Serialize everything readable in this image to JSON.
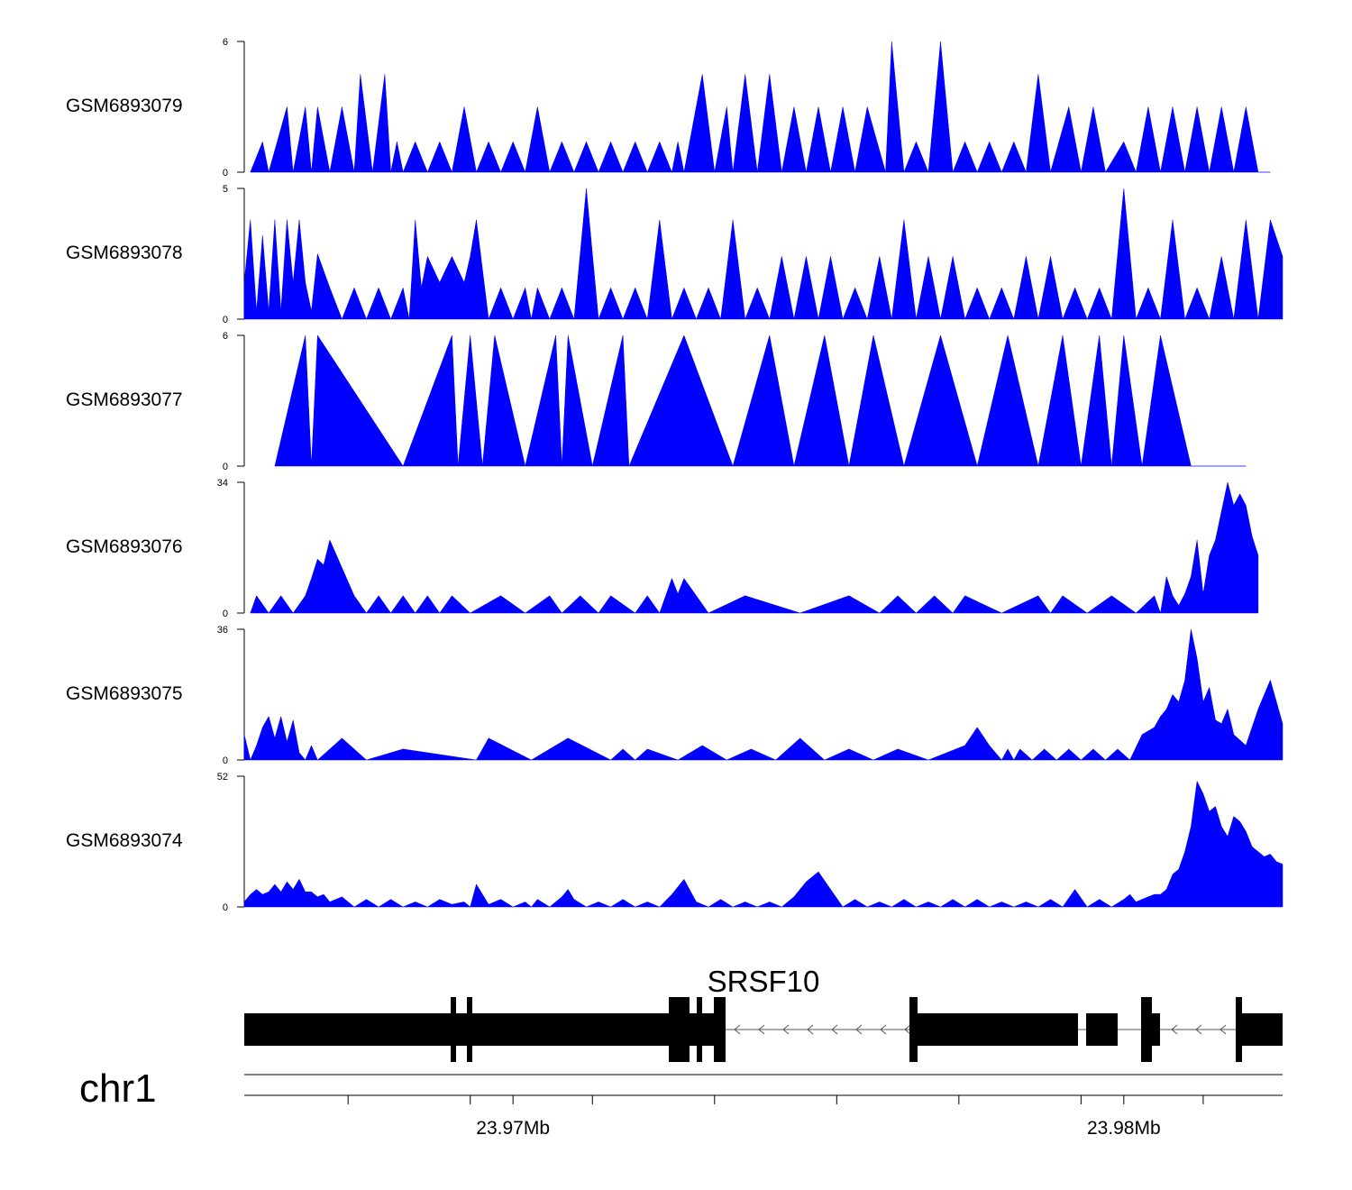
{
  "chart_data": {
    "type": "area",
    "title": "",
    "chromosome": "chr1",
    "x_unit": "Mb",
    "xlim": [
      23.9656,
      23.9826
    ],
    "x_ticks": [
      23.9673,
      23.9693,
      23.9713,
      23.9733,
      23.9753,
      23.9773,
      23.9793,
      23.9813
    ],
    "x_tick_labels": [
      {
        "value": 23.97,
        "label": "23.97Mb"
      },
      {
        "value": 23.98,
        "label": "23.98Mb"
      }
    ],
    "series_color": "#0000ff",
    "tracks": [
      {
        "name": "GSM6893079",
        "ylim": [
          0,
          6
        ],
        "ymax_label": "6",
        "ymin_label": "0",
        "x": [
          23.9657,
          23.9659,
          23.966,
          23.9663,
          23.9664,
          23.9666,
          23.9667,
          23.9668,
          23.967,
          23.9672,
          23.9674,
          23.9675,
          23.9677,
          23.9679,
          23.968,
          23.9681,
          23.9682,
          23.9684,
          23.9686,
          23.9688,
          23.969,
          23.9692,
          23.9694,
          23.9696,
          23.9698,
          23.97,
          23.9702,
          23.9704,
          23.9706,
          23.9708,
          23.971,
          23.9712,
          23.9714,
          23.9716,
          23.9718,
          23.972,
          23.9722,
          23.9724,
          23.9726,
          23.9727,
          23.9728,
          23.9731,
          23.9733,
          23.9735,
          23.9736,
          23.9738,
          23.974,
          23.9742,
          23.9744,
          23.9746,
          23.9748,
          23.975,
          23.9752,
          23.9754,
          23.9756,
          23.9758,
          23.9761,
          23.9762,
          23.9764,
          23.9766,
          23.9768,
          23.977,
          23.9772,
          23.9774,
          23.9776,
          23.9778,
          23.978,
          23.9782,
          23.9784,
          23.9786,
          23.9788,
          23.9791,
          23.9793,
          23.9795,
          23.9797,
          23.98,
          23.9802,
          23.9804,
          23.9806,
          23.9808,
          23.981,
          23.9812,
          23.9814,
          23.9816,
          23.9818,
          23.982,
          23.9822,
          23.9824
        ],
        "y": [
          0,
          1.4,
          0,
          3,
          0,
          3,
          0,
          3,
          0,
          3,
          0,
          4.5,
          0,
          4.5,
          0,
          1.4,
          0,
          1.4,
          0,
          1.4,
          0,
          3,
          0,
          1.4,
          0,
          1.4,
          0,
          3,
          0,
          1.4,
          0,
          1.4,
          0,
          1.4,
          0,
          1.4,
          0,
          1.4,
          0,
          1.4,
          0,
          4.5,
          0,
          3,
          0,
          4.5,
          0,
          4.5,
          0,
          3,
          0,
          3,
          0,
          3,
          0,
          3,
          0,
          6,
          0,
          1.4,
          0,
          6,
          0,
          1.4,
          0,
          1.4,
          0,
          1.4,
          0,
          4.5,
          0,
          3,
          0,
          3,
          0,
          1.4,
          0,
          3,
          0,
          3,
          0,
          3,
          0,
          3,
          0,
          3,
          0,
          0
        ],
        "baseline_only": false
      },
      {
        "name": "GSM6893078",
        "ylim": [
          0,
          5
        ],
        "ymax_label": "5",
        "ymin_label": "0",
        "x": [
          23.9656,
          23.9657,
          23.9658,
          23.9659,
          23.966,
          23.9661,
          23.9662,
          23.9663,
          23.9664,
          23.9665,
          23.9666,
          23.9667,
          23.9668,
          23.967,
          23.9672,
          23.9674,
          23.9676,
          23.9678,
          23.968,
          23.9682,
          23.9683,
          23.9684,
          23.9685,
          23.9686,
          23.9688,
          23.969,
          23.9692,
          23.9693,
          23.9694,
          23.9696,
          23.9698,
          23.97,
          23.9702,
          23.9703,
          23.9704,
          23.9706,
          23.9708,
          23.971,
          23.9712,
          23.9714,
          23.9716,
          23.9718,
          23.972,
          23.9722,
          23.9724,
          23.9726,
          23.9728,
          23.973,
          23.9732,
          23.9734,
          23.9736,
          23.9738,
          23.974,
          23.9742,
          23.9744,
          23.9746,
          23.9748,
          23.975,
          23.9752,
          23.9754,
          23.9756,
          23.9758,
          23.976,
          23.9762,
          23.9764,
          23.9766,
          23.9768,
          23.977,
          23.9772,
          23.9774,
          23.9776,
          23.9778,
          23.978,
          23.9782,
          23.9784,
          23.9786,
          23.9788,
          23.979,
          23.9792,
          23.9794,
          23.9796,
          23.9798,
          23.98,
          23.9802,
          23.9804,
          23.9806,
          23.9808,
          23.981,
          23.9812,
          23.9814,
          23.9816,
          23.9818,
          23.982,
          23.9822,
          23.9824,
          23.9826
        ],
        "y": [
          1.4,
          3.8,
          0.3,
          3.2,
          0.3,
          3.8,
          0.3,
          3.8,
          1.4,
          3.8,
          1.4,
          0.3,
          2.5,
          1.2,
          0,
          1.2,
          0,
          1.2,
          0,
          1.2,
          0,
          3.8,
          1.2,
          2.4,
          1.4,
          2.4,
          1.4,
          2.4,
          3.8,
          0,
          1.2,
          0,
          1.2,
          0,
          1.2,
          0,
          1.2,
          0,
          5,
          0,
          1.2,
          0,
          1.2,
          0,
          3.8,
          0,
          1.2,
          0,
          1.2,
          0,
          3.8,
          0,
          1.2,
          0,
          2.4,
          0,
          2.4,
          0,
          2.4,
          0,
          1.2,
          0,
          2.4,
          0,
          3.8,
          0,
          2.4,
          0,
          2.4,
          0,
          1.2,
          0,
          1.2,
          0,
          2.4,
          0,
          2.4,
          0,
          1.2,
          0,
          1.2,
          0,
          5,
          0,
          1.2,
          0,
          3.8,
          0,
          1.2,
          0,
          2.4,
          0,
          3.8,
          0,
          3.8,
          2.4
        ],
        "baseline_only": false
      },
      {
        "name": "GSM6893077",
        "ylim": [
          0,
          6
        ],
        "ymax_label": "6",
        "ymin_label": "0",
        "x": [
          23.9661,
          23.9666,
          23.9667,
          23.9668,
          23.9682,
          23.969,
          23.9691,
          23.9693,
          23.9695,
          23.9697,
          23.9702,
          23.9707,
          23.9708,
          23.9708,
          23.9709,
          23.9713,
          23.9718,
          23.9719,
          23.9728,
          23.9736,
          23.9742,
          23.9746,
          23.9751,
          23.9755,
          23.9759,
          23.9764,
          23.977,
          23.9776,
          23.9781,
          23.9786,
          23.979,
          23.9793,
          23.9796,
          23.9798,
          23.98,
          23.9803,
          23.9806,
          23.9811,
          23.9813,
          23.9816,
          23.9818,
          23.982
        ],
        "y": [
          0,
          6,
          0,
          6,
          0,
          6,
          0,
          6,
          0,
          6,
          0,
          6,
          0,
          0,
          6,
          0,
          6,
          0,
          6,
          0,
          6,
          0,
          6,
          0,
          6,
          0,
          6,
          0,
          6,
          0,
          6,
          0,
          6,
          0,
          6,
          0,
          6,
          0,
          0,
          0,
          0,
          0
        ],
        "baseline_only": false
      },
      {
        "name": "GSM6893076",
        "ylim": [
          0,
          34
        ],
        "ymax_label": "34",
        "ymin_label": "0",
        "x": [
          23.9657,
          23.9658,
          23.966,
          23.9662,
          23.9664,
          23.9666,
          23.9667,
          23.9668,
          23.9669,
          23.967,
          23.9674,
          23.9676,
          23.9678,
          23.968,
          23.9682,
          23.9684,
          23.9686,
          23.9688,
          23.969,
          23.9693,
          23.9698,
          23.9702,
          23.9706,
          23.9708,
          23.9711,
          23.9714,
          23.9716,
          23.972,
          23.9722,
          23.9724,
          23.9725,
          23.9726,
          23.9727,
          23.9728,
          23.973,
          23.9732,
          23.9738,
          23.9747,
          23.9755,
          23.976,
          23.9763,
          23.9766,
          23.9769,
          23.9772,
          23.9774,
          23.978,
          23.9786,
          23.9788,
          23.979,
          23.9794,
          23.9798,
          23.9802,
          23.9805,
          23.9806,
          23.9807,
          23.9808,
          23.9809,
          23.981,
          23.9811,
          23.9812,
          23.9813,
          23.9814,
          23.9815,
          23.9817,
          23.9818,
          23.9819,
          23.982,
          23.9821,
          23.9822
        ],
        "y": [
          0,
          4.5,
          0,
          4.5,
          0,
          4.5,
          9,
          14,
          12.5,
          19,
          4.5,
          0,
          4.5,
          0,
          4.5,
          0,
          4.5,
          0,
          4.5,
          0,
          4.5,
          0,
          4.5,
          0,
          4.5,
          0,
          4.5,
          0,
          4.5,
          0,
          4.5,
          9,
          5,
          9,
          4.5,
          0,
          4.5,
          0,
          4.5,
          0,
          4.5,
          0,
          4.5,
          0,
          4.5,
          0,
          4.5,
          0,
          4.5,
          0,
          4.5,
          0,
          4.5,
          0,
          9.5,
          4.5,
          2,
          5,
          9.5,
          19,
          5,
          15,
          19,
          34,
          28,
          31,
          28,
          20,
          15
        ],
        "baseline_only": false
      }
    ]
  },
  "gene_track": {
    "gene_name": "SRSF10",
    "strand": "-"
  }
}
